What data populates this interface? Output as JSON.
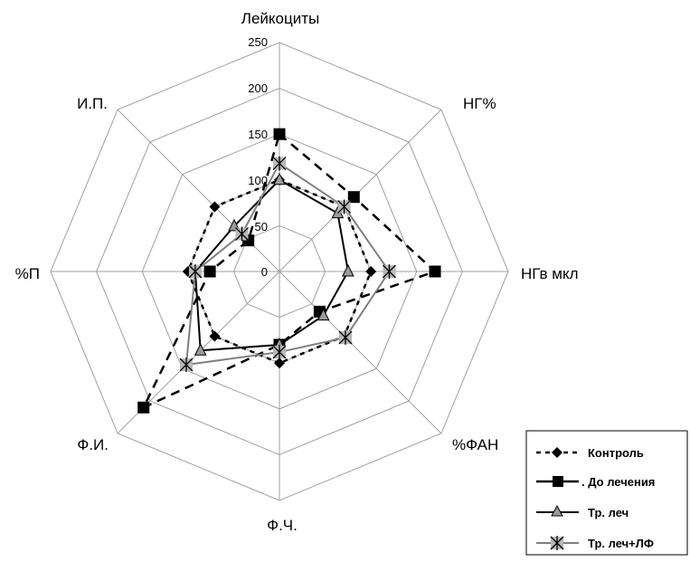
{
  "chart_data": {
    "type": "radar",
    "title": "",
    "axes": [
      "Лейкоциты",
      "НГ%",
      "НГв мкл",
      "%ФАН",
      "Ф.Ч.",
      "Ф.И.",
      "%П",
      "И.П."
    ],
    "rlim": [
      0,
      250
    ],
    "ticks": [
      0,
      50,
      100,
      150,
      200,
      250
    ],
    "tick_labels": [
      "0",
      "50",
      "100",
      "150",
      "200",
      "250"
    ],
    "grid": true,
    "legend_position": "bottom-right",
    "series": [
      {
        "name": "Контроль",
        "values": [
          100,
          100,
          100,
          100,
          100,
          100,
          100,
          100
        ],
        "color": "#000000",
        "dash": "short",
        "marker": "diamond"
      },
      {
        "name": ". До лечения",
        "values": [
          150,
          115,
          170,
          62,
          80,
          210,
          76,
          48
        ],
        "color": "#000000",
        "dash": "long",
        "marker": "square"
      },
      {
        "name": "Тр. леч",
        "values": [
          100,
          90,
          75,
          68,
          80,
          122,
          92,
          70
        ],
        "color": "#000000",
        "dash": "solid",
        "marker": "triangle"
      },
      {
        "name": "Тр. леч+ЛФ",
        "values": [
          118,
          100,
          120,
          102,
          88,
          144,
          92,
          58
        ],
        "color": "#808080",
        "dash": "solid",
        "marker": "star"
      }
    ]
  }
}
